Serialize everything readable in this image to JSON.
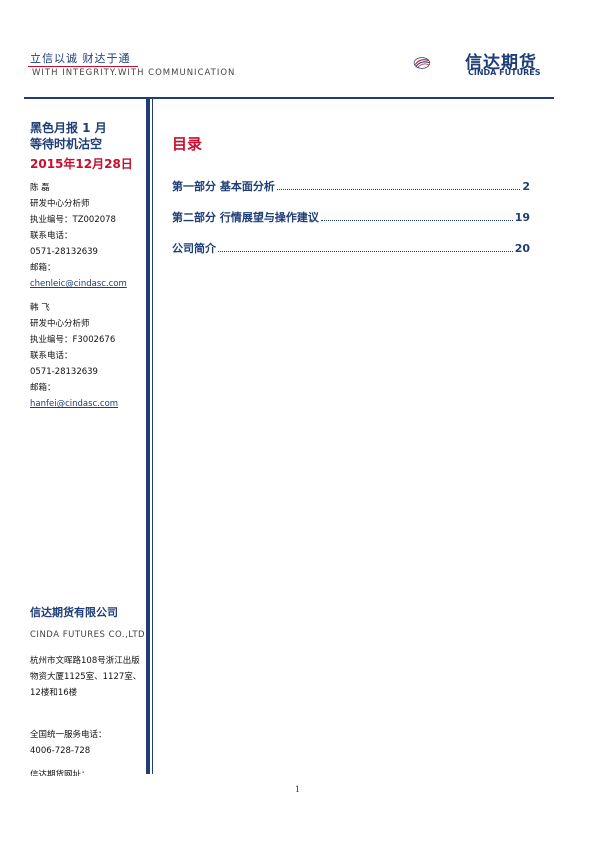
{
  "header": {
    "motto_cn": "立信以诚  财达于通",
    "motto_en": "WITH INTEGRITY.WITH COMMUNICATION",
    "logo_cn": "信达期货",
    "logo_en": "CINDA FUTURES",
    "brand_color": "#1f3e78",
    "accent_color": "#c8102e"
  },
  "sidebar": {
    "report_title_line1": "黑色月报 1 月",
    "report_title_line2": "等待时机沽空",
    "date": "2015年12月28日",
    "analysts": [
      {
        "name": "陈  磊",
        "role": "研发中心分析师",
        "license": "执业编号：TZ002078",
        "phone_label": "联系电话：",
        "phone": "0571-28132639",
        "email_label": "邮箱：",
        "email": "chenleic@cindasc.com"
      },
      {
        "name": "韩  飞",
        "role": "研发中心分析师",
        "license": "执业编号：F3002676",
        "phone_label": "联系电话：",
        "phone": "0571-28132639",
        "email_label": "邮箱：",
        "email": "hanfei@cindasc.com"
      }
    ],
    "company_name": "信达期货有限公司",
    "company_en": "CINDA FUTURES CO.,LTD",
    "address": "杭州市文晖路108号浙江出版物资大厦1125室、1127室、12楼和16楼",
    "service_label": "全国统一服务电话：",
    "service_phone": "4006-728-728",
    "website_label": "信达期货网址："
  },
  "toc": {
    "title": "目录",
    "entries": [
      {
        "label": "第一部分  基本面分析",
        "page": "2"
      },
      {
        "label": "第二部分  行情展望与操作建议",
        "page": "19"
      },
      {
        "label": "公司简介",
        "page": "20"
      }
    ]
  },
  "footer": {
    "page_number": "1"
  }
}
